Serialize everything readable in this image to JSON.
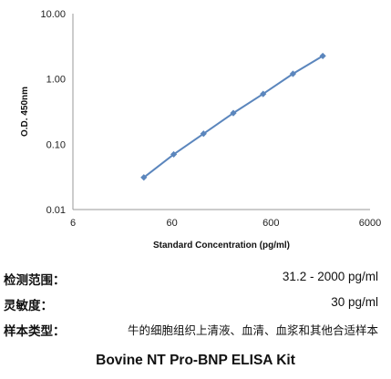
{
  "chart_data": {
    "type": "line",
    "x_scale": "log",
    "y_scale": "log",
    "xlabel": "Standard Concentration (pg/ml)",
    "ylabel": "O.D.  450nm",
    "xlim": [
      6,
      6000
    ],
    "ylim": [
      0.01,
      10
    ],
    "x_ticks": [
      {
        "value": 6,
        "label": "6"
      },
      {
        "value": 60,
        "label": "60"
      },
      {
        "value": 600,
        "label": "600"
      },
      {
        "value": 6000,
        "label": "6000"
      }
    ],
    "y_ticks": [
      {
        "value": 0.01,
        "label": "0.01"
      },
      {
        "value": 0.1,
        "label": "0.10"
      },
      {
        "value": 1,
        "label": "1.00"
      },
      {
        "value": 10,
        "label": "10.00"
      }
    ],
    "grid": false,
    "series": [
      {
        "color": "#5b86bd",
        "x": [
          31.2,
          62.5,
          125,
          250,
          500,
          1000,
          2000
        ],
        "y": [
          0.031,
          0.07,
          0.145,
          0.3,
          0.59,
          1.2,
          2.25
        ]
      }
    ]
  },
  "specs": [
    {
      "key": "检测范围：",
      "value": "31.2 - 2000 pg/ml"
    },
    {
      "key": "灵敏度：",
      "value": "30 pg/ml"
    },
    {
      "key": "样本类型：",
      "value": "牛的细胞组织上清液、血清、血浆和其他合适样本"
    }
  ],
  "kit_title": "Bovine NT Pro-BNP ELISA Kit"
}
